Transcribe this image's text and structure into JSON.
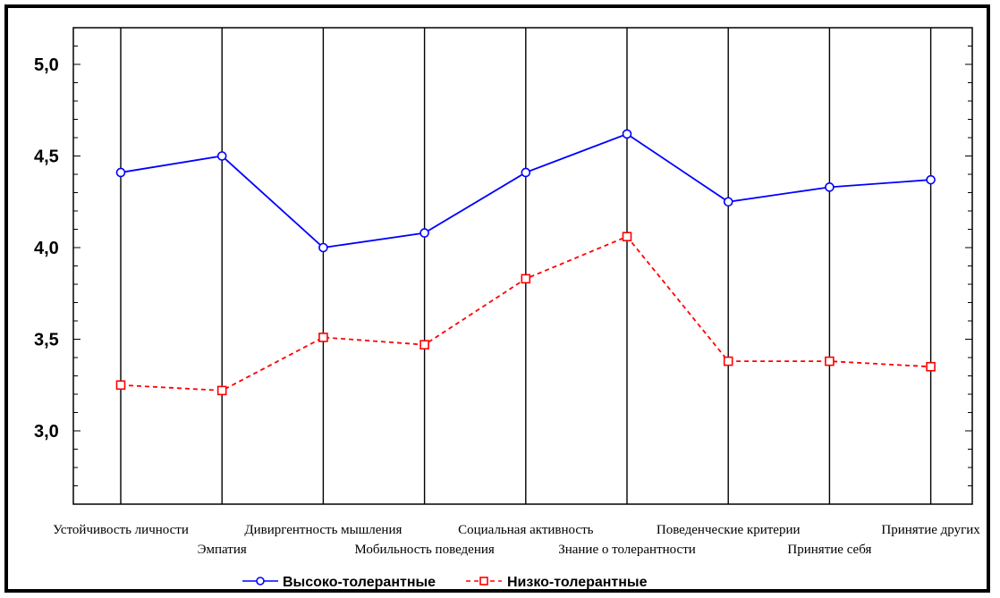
{
  "chart_data": {
    "type": "line",
    "title": "",
    "xlabel": "",
    "ylabel": "",
    "categories": [
      "Устойчивость личности",
      "Эмпатия",
      "Дивиргентность мышления",
      "Мобильность поведения",
      "Социальная активность",
      "Знание о толерантности",
      "Поведенческие критерии",
      "Принятие себя",
      "Принятие других"
    ],
    "ylim": [
      2.6,
      5.2
    ],
    "yticks": [
      "3,0",
      "3,5",
      "4,0",
      "4,5",
      "5,0"
    ],
    "grid": "vertical",
    "legend": "bottom-center",
    "series": [
      {
        "name": "Высоко-толерантные",
        "color": "#0000ff",
        "marker": "circle",
        "line_style": "solid",
        "values": [
          4.41,
          4.5,
          4.0,
          4.08,
          4.41,
          4.62,
          4.25,
          4.33,
          4.37
        ]
      },
      {
        "name": "Низко-толерантные",
        "color": "#ff0000",
        "marker": "square",
        "line_style": "dashed",
        "values": [
          3.25,
          3.22,
          3.51,
          3.47,
          3.83,
          4.06,
          3.38,
          3.38,
          3.35
        ]
      }
    ]
  }
}
